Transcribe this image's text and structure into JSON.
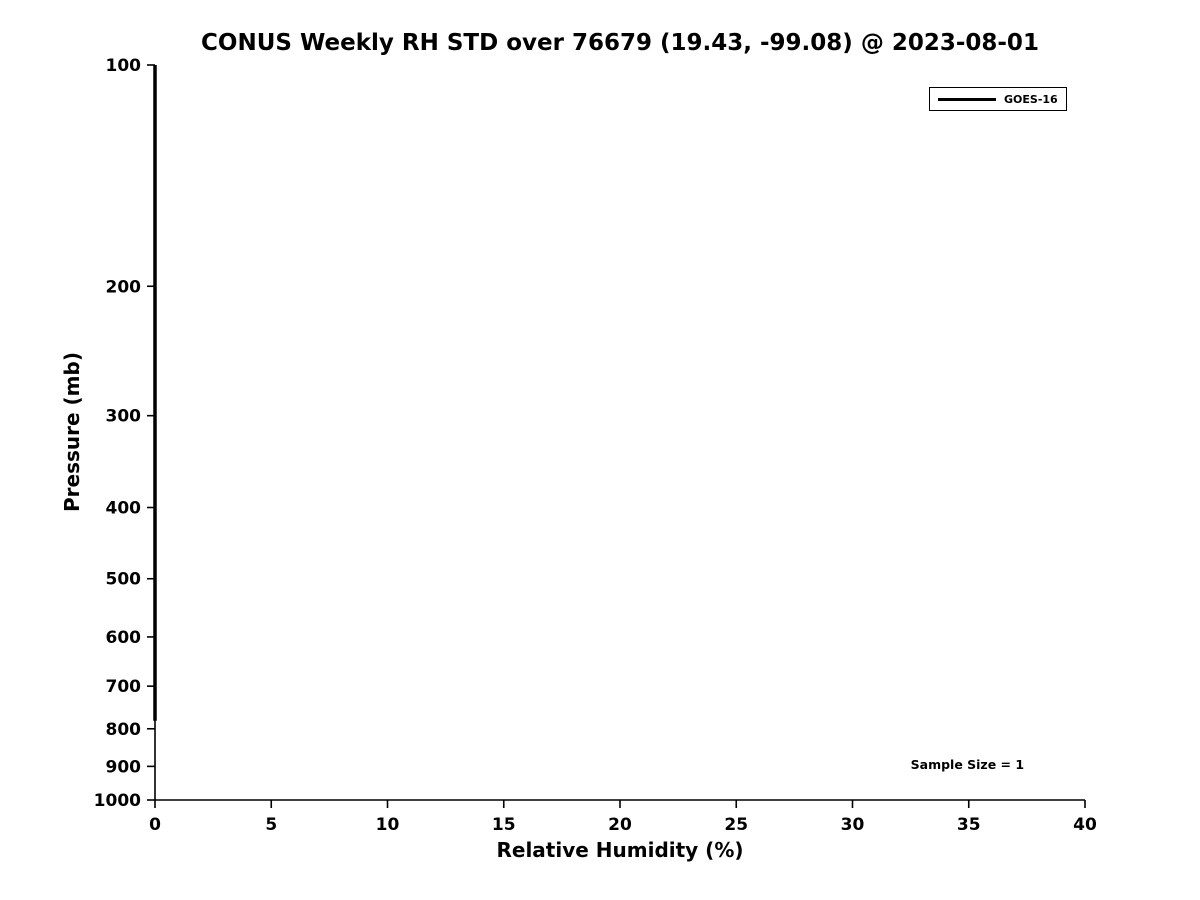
{
  "chart_data": {
    "type": "line",
    "title": "CONUS Weekly RH STD over 76679 (19.43, -99.08) @ 2023-08-01",
    "xlabel": "Relative Humidity (%)",
    "ylabel": "Pressure (mb)",
    "xlim": [
      0,
      40
    ],
    "xticks": [
      0,
      5,
      10,
      15,
      20,
      25,
      30,
      35,
      40
    ],
    "ylim": [
      100,
      1000
    ],
    "yticks": [
      100,
      200,
      300,
      400,
      500,
      600,
      700,
      800,
      900,
      1000
    ],
    "y_scale": "log",
    "y_inverted": true,
    "grid": false,
    "legend_position": "top-right",
    "series": [
      {
        "name": "GOES-16",
        "color": "#000000",
        "pressure": [
          100,
          150,
          200,
          250,
          300,
          400,
          500,
          600,
          700,
          780
        ],
        "values": [
          0,
          0,
          0,
          0,
          0,
          0,
          0,
          0,
          0,
          0
        ]
      }
    ],
    "annotation": {
      "text": "Sample Size = 1",
      "x": 32.5,
      "y": 900
    }
  }
}
